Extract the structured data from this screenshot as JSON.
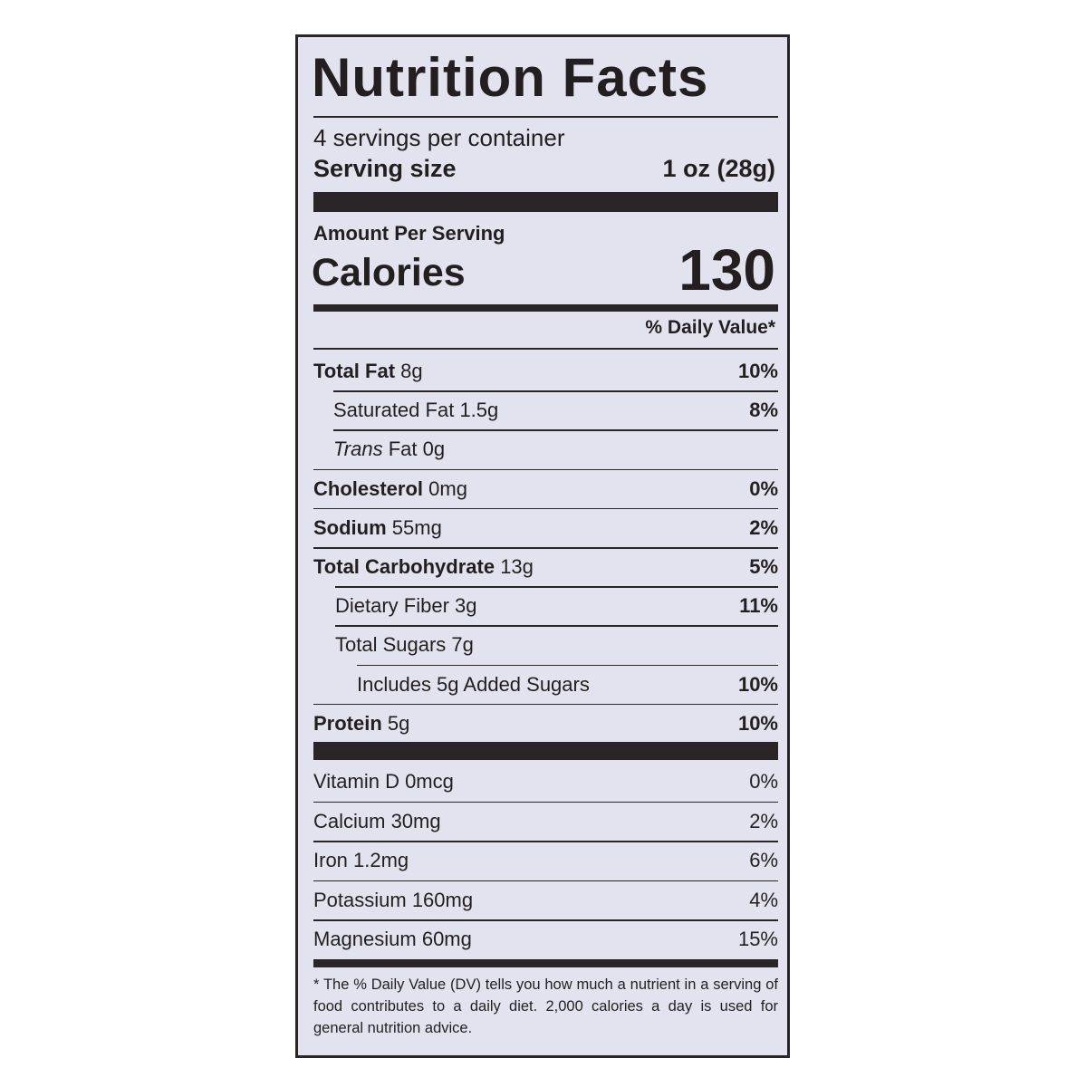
{
  "title": "Nutrition Facts",
  "servings_per_container": "4 servings per container",
  "serving_size_label": "Serving size",
  "serving_size_value": "1 oz (28g)",
  "amount_per_serving": "Amount Per Serving",
  "calories_label": "Calories",
  "calories_value": "130",
  "daily_value_header": "% Daily Value*",
  "nutrients": [
    {
      "name": "Total Fat",
      "amount": "8g",
      "dv": "10%"
    },
    {
      "name": "Saturated Fat",
      "amount": "1.5g",
      "dv": "8%"
    },
    {
      "name": "Trans",
      "name_rest": "Fat",
      "amount": "0g",
      "dv": ""
    },
    {
      "name": "Cholesterol",
      "amount": "0mg",
      "dv": "0%"
    },
    {
      "name": "Sodium",
      "amount": "55mg",
      "dv": "2%"
    },
    {
      "name": "Total Carbohydrate",
      "amount": "13g",
      "dv": "5%"
    },
    {
      "name": "Dietary Fiber",
      "amount": "3g",
      "dv": "11%"
    },
    {
      "name": "Total Sugars",
      "amount": "7g",
      "dv": ""
    },
    {
      "name": "Includes 5g Added Sugars",
      "amount": "",
      "dv": "10%"
    },
    {
      "name": "Protein",
      "amount": "5g",
      "dv": "10%"
    }
  ],
  "vitamins": [
    {
      "name": "Vitamin D 0mcg",
      "dv": "0%"
    },
    {
      "name": "Calcium 30mg",
      "dv": "2%"
    },
    {
      "name": "Iron 1.2mg",
      "dv": "6%"
    },
    {
      "name": "Potassium 160mg",
      "dv": "4%"
    },
    {
      "name": "Magnesium 60mg",
      "dv": "15%"
    }
  ],
  "footnote": "* The % Daily Value (DV) tells you how much a nutrient in a serving of food contributes to a daily diet. 2,000 calories a day is used for general nutrition advice.",
  "colors": {
    "ink": "#231f20",
    "label_background": "#e3e3ef"
  }
}
